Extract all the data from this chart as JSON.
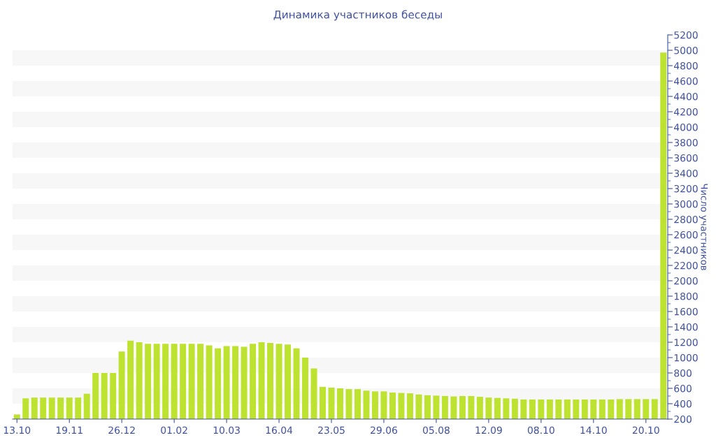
{
  "chart_data": {
    "type": "bar",
    "title": "Динамика участников беседы",
    "ylabel": "Число участников",
    "categories": [
      "13.10",
      null,
      null,
      null,
      null,
      null,
      "19.11",
      null,
      null,
      null,
      null,
      null,
      "26.12",
      null,
      null,
      null,
      null,
      null,
      "01.02",
      null,
      null,
      null,
      null,
      null,
      "10.03",
      null,
      null,
      null,
      null,
      null,
      "16.04",
      null,
      null,
      null,
      null,
      null,
      "23.05",
      null,
      null,
      null,
      null,
      null,
      "29.06",
      null,
      null,
      null,
      null,
      null,
      "05.08",
      null,
      null,
      null,
      null,
      null,
      "12.09",
      null,
      null,
      null,
      null,
      null,
      "08.10",
      null,
      null,
      null,
      null,
      null,
      "14.10",
      null,
      null,
      null,
      null,
      null,
      "20.10",
      null,
      null
    ],
    "values": [
      260,
      470,
      480,
      480,
      480,
      480,
      480,
      480,
      530,
      800,
      800,
      800,
      1080,
      1220,
      1200,
      1180,
      1180,
      1180,
      1180,
      1180,
      1180,
      1180,
      1160,
      1120,
      1150,
      1150,
      1140,
      1180,
      1200,
      1190,
      1180,
      1170,
      1120,
      1000,
      860,
      620,
      610,
      600,
      590,
      590,
      570,
      560,
      560,
      545,
      540,
      535,
      520,
      510,
      505,
      500,
      495,
      500,
      500,
      490,
      480,
      475,
      470,
      465,
      455,
      455,
      455,
      455,
      455,
      455,
      455,
      455,
      455,
      455,
      455,
      460,
      460,
      460,
      460,
      460,
      4970
    ],
    "color": "#bde22f",
    "ylim": [
      200,
      5200
    ],
    "yticks": [
      200,
      400,
      600,
      800,
      1000,
      1200,
      1400,
      1600,
      1800,
      2000,
      2200,
      2400,
      2600,
      2800,
      3000,
      3200,
      3400,
      3600,
      3800,
      4000,
      4200,
      4400,
      4600,
      4800,
      5000,
      5200
    ],
    "bands": [
      {
        "axis": "y",
        "from": 400,
        "to": 600,
        "color": "#f7f7f7"
      },
      {
        "axis": "y",
        "from": 800,
        "to": 1000,
        "color": "#f7f7f7"
      },
      {
        "axis": "y",
        "from": 1200,
        "to": 1400,
        "color": "#f7f7f7"
      },
      {
        "axis": "y",
        "from": 1600,
        "to": 1800,
        "color": "#f7f7f7"
      },
      {
        "axis": "y",
        "from": 2000,
        "to": 2200,
        "color": "#f7f7f7"
      },
      {
        "axis": "y",
        "from": 2400,
        "to": 2600,
        "color": "#f7f7f7"
      },
      {
        "axis": "y",
        "from": 2800,
        "to": 3000,
        "color": "#f7f7f7"
      },
      {
        "axis": "y",
        "from": 3200,
        "to": 3400,
        "color": "#f7f7f7"
      },
      {
        "axis": "y",
        "from": 3600,
        "to": 3800,
        "color": "#f7f7f7"
      },
      {
        "axis": "y",
        "from": 4000,
        "to": 4200,
        "color": "#f7f7f7"
      },
      {
        "axis": "y",
        "from": 4400,
        "to": 4600,
        "color": "#f7f7f7"
      },
      {
        "axis": "y",
        "from": 4800,
        "to": 5000,
        "color": "#f7f7f7"
      }
    ]
  }
}
